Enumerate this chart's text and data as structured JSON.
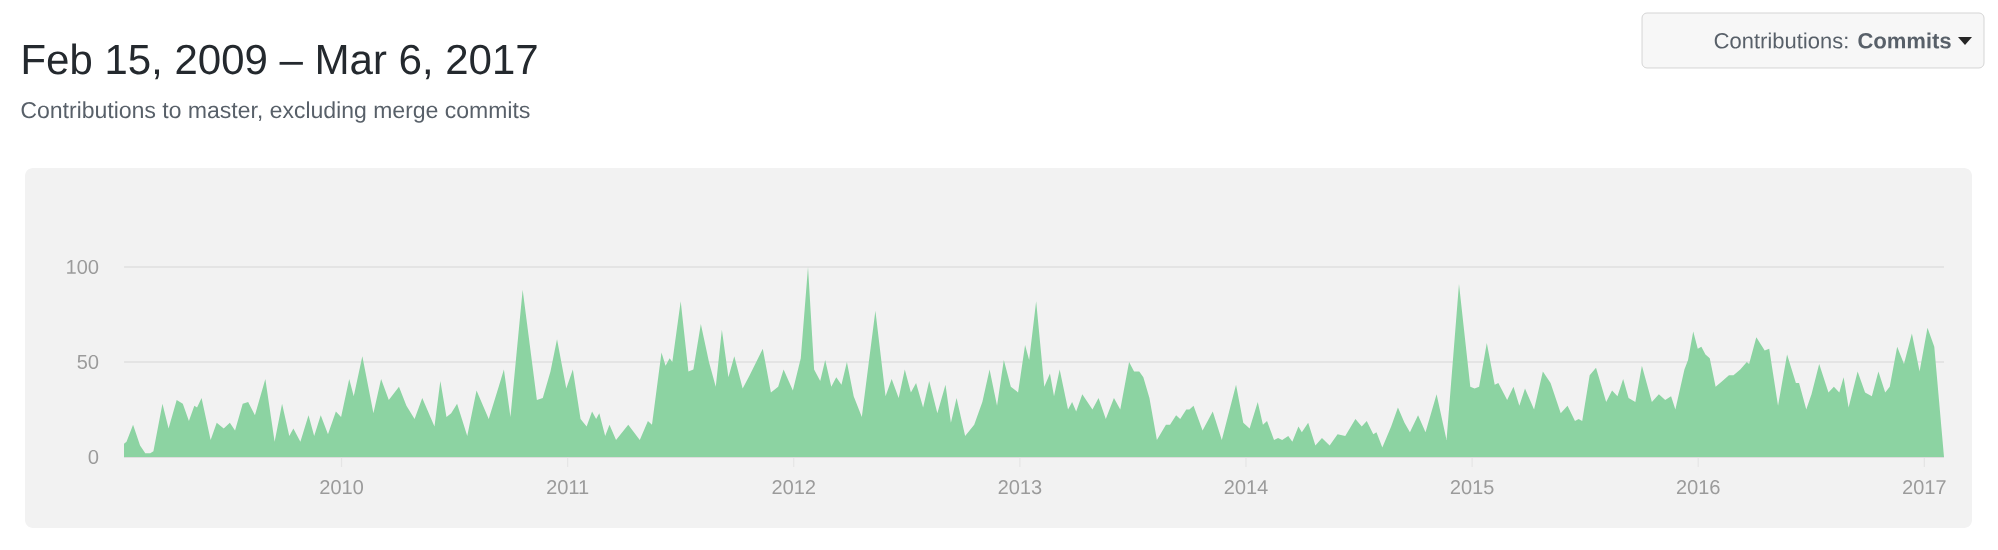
{
  "chart_data": {
    "type": "area",
    "title": "Feb 15, 2009 – Mar 6, 2017",
    "subtitle": "Contributions to master, excluding merge commits",
    "annotations": [
      "Contributions: **Commits**"
    ],
    "color": "#8cd3a2",
    "grid": "y",
    "xlim": [
      2009.038,
      2017.087
    ],
    "ylim": [
      0,
      100
    ],
    "xticks": [
      2010,
      2011,
      2012,
      2013,
      2014,
      2015,
      2016,
      2017
    ],
    "yticks": [
      0,
      50,
      100
    ],
    "x": [
      2009.038,
      2009.049,
      2009.078,
      2009.109,
      2009.132,
      2009.154,
      2009.168,
      2009.208,
      2009.235,
      2009.271,
      2009.298,
      2009.325,
      2009.349,
      2009.361,
      2009.381,
      2009.421,
      2009.448,
      2009.479,
      2009.506,
      2009.529,
      2009.563,
      2009.587,
      2009.617,
      2009.663,
      2009.704,
      2009.737,
      2009.769,
      2009.787,
      2009.818,
      2009.854,
      2009.879,
      2009.908,
      2009.94,
      2009.975,
      2009.998,
      2010.034,
      2010.054,
      2010.092,
      2010.141,
      2010.175,
      2010.209,
      2010.254,
      2010.287,
      2010.323,
      2010.357,
      2010.411,
      2010.437,
      2010.464,
      2010.485,
      2010.511,
      2010.556,
      2010.597,
      2010.651,
      2010.695,
      2010.718,
      2010.747,
      2010.801,
      2010.864,
      2010.89,
      2010.924,
      2010.953,
      2010.994,
      2011.023,
      2011.057,
      2011.084,
      2011.108,
      2011.126,
      2011.14,
      2011.166,
      2011.185,
      2011.214,
      2011.268,
      2011.319,
      2011.355,
      2011.373,
      2011.415,
      2011.433,
      2011.451,
      2011.463,
      2011.5,
      2011.534,
      2011.556,
      2011.589,
      2011.625,
      2011.655,
      2011.682,
      2011.711,
      2011.737,
      2011.774,
      2011.805,
      2011.863,
      2011.899,
      2011.931,
      2011.955,
      2011.996,
      2012.031,
      2012.063,
      2012.09,
      2012.117,
      2012.139,
      2012.166,
      2012.188,
      2012.211,
      2012.235,
      2012.265,
      2012.301,
      2012.361,
      2012.406,
      2012.433,
      2012.464,
      2012.491,
      2012.518,
      2012.541,
      2012.572,
      2012.599,
      2012.635,
      2012.671,
      2012.695,
      2012.72,
      2012.758,
      2012.798,
      2012.834,
      2012.866,
      2012.899,
      2012.929,
      2012.96,
      2012.992,
      2013.023,
      2013.041,
      2013.072,
      2013.108,
      2013.133,
      2013.151,
      2013.176,
      2013.213,
      2013.231,
      2013.249,
      2013.276,
      2013.321,
      2013.348,
      2013.38,
      2013.416,
      2013.444,
      2013.483,
      2013.505,
      2013.528,
      2013.546,
      2013.573,
      2013.606,
      2013.646,
      2013.664,
      2013.691,
      2013.709,
      2013.736,
      2013.75,
      2013.768,
      2013.808,
      2013.853,
      2013.893,
      2013.956,
      2013.988,
      2014.016,
      2014.052,
      2014.075,
      2014.093,
      2014.124,
      2014.142,
      2014.16,
      2014.187,
      2014.205,
      2014.232,
      2014.247,
      2014.275,
      2014.307,
      2014.336,
      2014.37,
      2014.405,
      2014.439,
      2014.484,
      2014.512,
      2014.534,
      2014.563,
      2014.577,
      2014.603,
      2014.642,
      2014.672,
      2014.701,
      2014.725,
      2014.761,
      2014.794,
      2014.843,
      2014.887,
      2014.942,
      2014.992,
      2015.011,
      2015.031,
      2015.065,
      2015.1,
      2015.116,
      2015.155,
      2015.183,
      2015.209,
      2015.234,
      2015.274,
      2015.313,
      2015.347,
      2015.392,
      2015.422,
      2015.455,
      2015.471,
      2015.487,
      2015.52,
      2015.548,
      2015.593,
      2015.619,
      2015.643,
      2015.668,
      2015.692,
      2015.722,
      2015.751,
      2015.795,
      2015.826,
      2015.854,
      2015.88,
      2015.899,
      2015.939,
      2015.955,
      2015.978,
      2015.998,
      2016.014,
      2016.032,
      2016.051,
      2016.077,
      2016.107,
      2016.136,
      2016.156,
      2016.186,
      2016.215,
      2016.225,
      2016.257,
      2016.294,
      2016.314,
      2016.353,
      2016.393,
      2016.432,
      2016.446,
      2016.478,
      2016.501,
      2016.535,
      2016.576,
      2016.6,
      2016.624,
      2016.643,
      2016.665,
      2016.705,
      2016.738,
      2016.768,
      2016.797,
      2016.827,
      2016.847,
      2016.88,
      2016.91,
      2016.945,
      2016.979,
      2017.014,
      2017.044,
      2017.087
    ],
    "values": [
      7,
      8,
      17,
      6,
      2,
      2,
      3,
      28,
      15,
      30,
      28,
      19,
      27,
      26,
      31,
      9,
      18,
      15,
      18,
      14,
      28,
      29,
      22,
      41,
      8,
      28,
      11,
      15,
      8,
      22,
      11,
      22,
      12,
      24,
      21,
      41,
      32,
      53,
      23,
      41,
      30,
      37,
      27,
      20,
      31,
      16,
      40,
      21,
      23,
      28,
      11,
      35,
      20,
      37,
      46,
      21,
      88,
      30,
      31,
      45,
      62,
      36,
      46,
      20,
      16,
      24,
      20,
      23,
      11,
      17,
      9,
      17,
      9,
      19,
      17,
      55,
      48,
      52,
      50,
      82,
      45,
      46,
      70,
      50,
      37,
      67,
      42,
      53,
      36,
      43,
      57,
      34,
      37,
      46,
      35,
      52,
      100,
      46,
      40,
      51,
      37,
      42,
      38,
      50,
      32,
      21,
      77,
      32,
      41,
      31,
      46,
      34,
      39,
      26,
      40,
      23,
      38,
      18,
      31,
      11,
      17,
      29,
      46,
      27,
      51,
      37,
      34,
      59,
      51,
      82,
      37,
      44,
      32,
      46,
      25,
      29,
      24,
      33,
      25,
      31,
      20,
      31,
      25,
      50,
      45,
      45,
      42,
      31,
      9,
      17,
      17,
      22,
      20,
      25,
      25,
      27,
      14,
      24,
      9,
      38,
      18,
      15,
      29,
      17,
      19,
      9,
      10,
      9,
      11,
      8,
      16,
      13,
      18,
      6,
      10,
      6,
      12,
      11,
      20,
      16,
      19,
      12,
      13,
      5,
      16,
      26,
      18,
      13,
      22,
      13,
      33,
      9,
      91,
      37,
      36,
      37,
      60,
      38,
      39,
      30,
      37,
      27,
      36,
      25,
      45,
      39,
      23,
      27,
      19,
      20,
      19,
      43,
      47,
      29,
      35,
      32,
      41,
      31,
      29,
      48,
      29,
      33,
      30,
      32,
      25,
      46,
      51,
      66,
      57,
      58,
      54,
      52,
      37,
      40,
      43,
      43,
      46,
      50,
      49,
      63,
      56,
      57,
      27,
      54,
      39,
      39,
      25,
      33,
      49,
      34,
      37,
      34,
      42,
      26,
      45,
      34,
      32,
      45,
      34,
      37,
      58,
      49,
      65,
      45,
      68,
      58,
      0
    ]
  }
}
